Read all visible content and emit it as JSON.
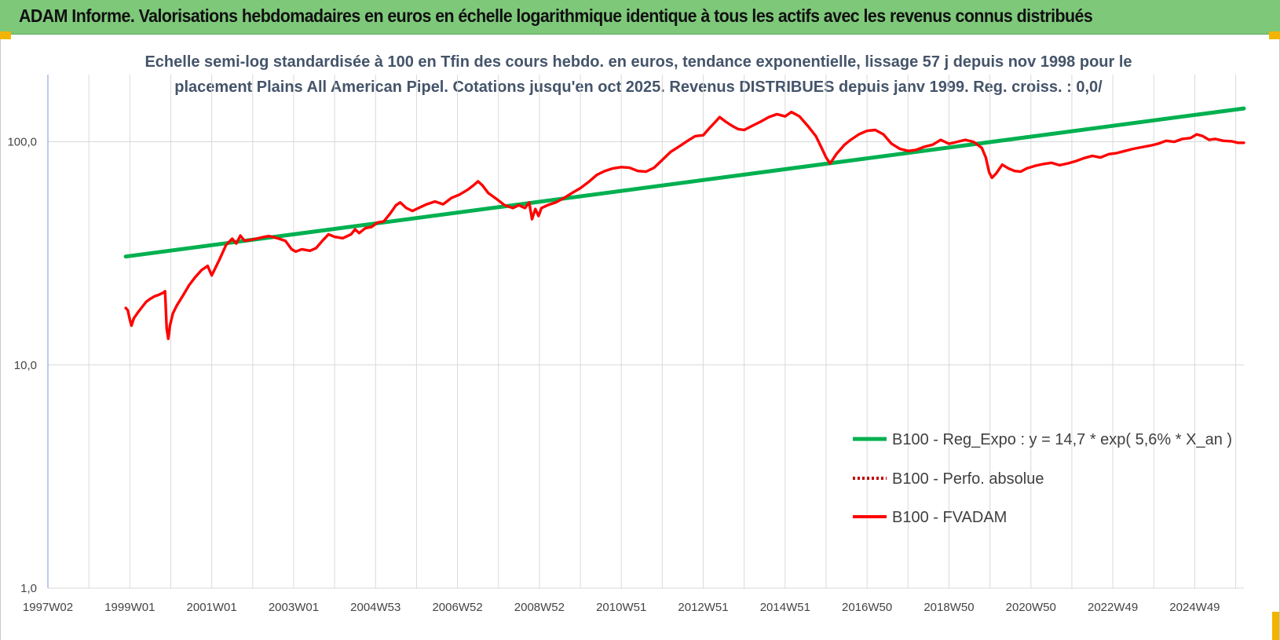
{
  "header": {
    "title": "ADAM Informe. Valorisations hebdomadaires en euros en échelle logarithmique identique à tous les actifs avec les revenus connus distribués"
  },
  "colors": {
    "header_bg": "#7ec87a",
    "trend": "#00b050",
    "fvadam": "#ff0000",
    "perfo": "#c00000",
    "grid": "#d9d9d9"
  },
  "chart_data": {
    "type": "line",
    "title_line1": "Echelle semi-log standardisée à 100 en Tfin des cours hebdo. en euros, tendance exponentielle, lissage 57 j depuis nov 1998 pour le",
    "title_line2": "placement Plains All American Pipel. Cotations jusqu'en oct 2025. Revenus DISTRIBUES depuis janv 1999. Reg. croiss. : 0,0/",
    "y_scale": "log",
    "ylim": [
      1,
      200
    ],
    "y_ticks": [
      {
        "value": 1,
        "label": "1,0"
      },
      {
        "value": 10,
        "label": "10,0"
      },
      {
        "value": 100,
        "label": "100,0"
      }
    ],
    "xlim": [
      1997.0,
      2026.2
    ],
    "x_ticks": [
      {
        "value": 1997.0,
        "label": "1997W02"
      },
      {
        "value": 1999.0,
        "label": "1999W01"
      },
      {
        "value": 2001.0,
        "label": "2001W01"
      },
      {
        "value": 2003.0,
        "label": "2003W01"
      },
      {
        "value": 2005.0,
        "label": "2004W53"
      },
      {
        "value": 2007.0,
        "label": "2006W52"
      },
      {
        "value": 2009.0,
        "label": "2008W52"
      },
      {
        "value": 2011.0,
        "label": "2010W51"
      },
      {
        "value": 2013.0,
        "label": "2012W51"
      },
      {
        "value": 2015.0,
        "label": "2014W51"
      },
      {
        "value": 2017.0,
        "label": "2016W50"
      },
      {
        "value": 2019.0,
        "label": "2018W50"
      },
      {
        "value": 2021.0,
        "label": "2020W50"
      },
      {
        "value": 2023.0,
        "label": "2022W49"
      },
      {
        "value": 2025.0,
        "label": "2024W49"
      }
    ],
    "legend_position": "bottom-right",
    "series": [
      {
        "name": "B100 - Reg_Expo : y = 14,7 * exp( 5,6% * X_an )",
        "style": "solid",
        "color": "#00b050",
        "points": [
          [
            1998.9,
            30.6
          ],
          [
            2026.2,
            141.0
          ]
        ]
      },
      {
        "name": "B100 - Perfo. absolue",
        "style": "dotted",
        "color": "#c00000",
        "points": []
      },
      {
        "name": "B100 - FVADAM",
        "style": "solid",
        "color": "#ff0000",
        "points": [
          [
            1998.9,
            18.0
          ],
          [
            1998.95,
            17.6
          ],
          [
            1999.0,
            16.0
          ],
          [
            1999.04,
            15.0
          ],
          [
            1999.1,
            16.2
          ],
          [
            1999.2,
            17.2
          ],
          [
            1999.3,
            18.2
          ],
          [
            1999.4,
            19.2
          ],
          [
            1999.5,
            19.8
          ],
          [
            1999.6,
            20.3
          ],
          [
            1999.7,
            20.6
          ],
          [
            1999.8,
            21.0
          ],
          [
            1999.86,
            21.4
          ],
          [
            1999.9,
            14.5
          ],
          [
            1999.94,
            13.1
          ],
          [
            1999.98,
            15.0
          ],
          [
            2000.05,
            17.0
          ],
          [
            2000.15,
            18.5
          ],
          [
            2000.3,
            20.5
          ],
          [
            2000.45,
            22.8
          ],
          [
            2000.6,
            24.8
          ],
          [
            2000.75,
            26.6
          ],
          [
            2000.9,
            27.8
          ],
          [
            2001.0,
            25.2
          ],
          [
            2001.08,
            27.0
          ],
          [
            2001.2,
            30.0
          ],
          [
            2001.35,
            34.5
          ],
          [
            2001.5,
            36.8
          ],
          [
            2001.6,
            35.0
          ],
          [
            2001.7,
            38.0
          ],
          [
            2001.8,
            36.0
          ],
          [
            2002.0,
            36.5
          ],
          [
            2002.2,
            37.2
          ],
          [
            2002.4,
            37.8
          ],
          [
            2002.6,
            37.0
          ],
          [
            2002.8,
            36.0
          ],
          [
            2002.95,
            33.0
          ],
          [
            2003.05,
            32.2
          ],
          [
            2003.2,
            33.0
          ],
          [
            2003.4,
            32.5
          ],
          [
            2003.55,
            33.4
          ],
          [
            2003.7,
            36.0
          ],
          [
            2003.85,
            38.5
          ],
          [
            2004.0,
            37.5
          ],
          [
            2004.2,
            37.0
          ],
          [
            2004.4,
            38.5
          ],
          [
            2004.5,
            40.5
          ],
          [
            2004.6,
            39.0
          ],
          [
            2004.75,
            41.0
          ],
          [
            2004.9,
            41.5
          ],
          [
            2005.05,
            43.5
          ],
          [
            2005.2,
            44.0
          ],
          [
            2005.35,
            47.5
          ],
          [
            2005.5,
            52.0
          ],
          [
            2005.6,
            53.5
          ],
          [
            2005.75,
            50.5
          ],
          [
            2005.9,
            49.0
          ],
          [
            2006.05,
            50.5
          ],
          [
            2006.25,
            52.5
          ],
          [
            2006.45,
            54.0
          ],
          [
            2006.65,
            52.5
          ],
          [
            2006.85,
            56.0
          ],
          [
            2007.05,
            58.0
          ],
          [
            2007.25,
            61.0
          ],
          [
            2007.4,
            64.0
          ],
          [
            2007.5,
            66.5
          ],
          [
            2007.6,
            64.0
          ],
          [
            2007.75,
            59.0
          ],
          [
            2007.95,
            55.5
          ],
          [
            2008.15,
            52.0
          ],
          [
            2008.35,
            50.5
          ],
          [
            2008.5,
            52.0
          ],
          [
            2008.65,
            50.5
          ],
          [
            2008.75,
            53.5
          ],
          [
            2008.82,
            45.0
          ],
          [
            2008.9,
            50.0
          ],
          [
            2008.98,
            46.5
          ],
          [
            2009.05,
            50.5
          ],
          [
            2009.2,
            52.0
          ],
          [
            2009.4,
            53.5
          ],
          [
            2009.6,
            56.0
          ],
          [
            2009.8,
            59.0
          ],
          [
            2010.0,
            62.0
          ],
          [
            2010.2,
            66.0
          ],
          [
            2010.4,
            71.0
          ],
          [
            2010.6,
            74.0
          ],
          [
            2010.8,
            76.0
          ],
          [
            2011.0,
            77.0
          ],
          [
            2011.2,
            76.5
          ],
          [
            2011.4,
            74.0
          ],
          [
            2011.6,
            73.5
          ],
          [
            2011.8,
            76.5
          ],
          [
            2012.0,
            83.0
          ],
          [
            2012.2,
            90.0
          ],
          [
            2012.4,
            95.0
          ],
          [
            2012.6,
            100.5
          ],
          [
            2012.8,
            106.0
          ],
          [
            2013.0,
            107.0
          ],
          [
            2013.15,
            115.0
          ],
          [
            2013.3,
            123.0
          ],
          [
            2013.4,
            129.0
          ],
          [
            2013.55,
            123.0
          ],
          [
            2013.7,
            118.0
          ],
          [
            2013.85,
            114.0
          ],
          [
            2014.0,
            113.0
          ],
          [
            2014.2,
            118.0
          ],
          [
            2014.4,
            123.0
          ],
          [
            2014.6,
            129.0
          ],
          [
            2014.8,
            133.0
          ],
          [
            2015.0,
            130.0
          ],
          [
            2015.15,
            136.0
          ],
          [
            2015.35,
            130.0
          ],
          [
            2015.55,
            118.0
          ],
          [
            2015.75,
            106.0
          ],
          [
            2015.9,
            93.0
          ],
          [
            2016.0,
            85.0
          ],
          [
            2016.1,
            80.0
          ],
          [
            2016.25,
            88.0
          ],
          [
            2016.45,
            97.0
          ],
          [
            2016.6,
            102.0
          ],
          [
            2016.8,
            108.0
          ],
          [
            2017.0,
            112.0
          ],
          [
            2017.2,
            113.0
          ],
          [
            2017.4,
            108.0
          ],
          [
            2017.6,
            98.0
          ],
          [
            2017.8,
            93.0
          ],
          [
            2018.0,
            91.0
          ],
          [
            2018.2,
            92.0
          ],
          [
            2018.4,
            95.0
          ],
          [
            2018.6,
            97.0
          ],
          [
            2018.8,
            102.0
          ],
          [
            2019.0,
            98.0
          ],
          [
            2019.2,
            100.0
          ],
          [
            2019.4,
            102.0
          ],
          [
            2019.6,
            100.0
          ],
          [
            2019.8,
            94.0
          ],
          [
            2019.9,
            85.0
          ],
          [
            2019.98,
            73.0
          ],
          [
            2020.05,
            69.0
          ],
          [
            2020.15,
            72.0
          ],
          [
            2020.3,
            79.0
          ],
          [
            2020.45,
            76.0
          ],
          [
            2020.6,
            74.0
          ],
          [
            2020.75,
            73.5
          ],
          [
            2020.9,
            76.0
          ],
          [
            2021.1,
            78.0
          ],
          [
            2021.3,
            79.5
          ],
          [
            2021.5,
            80.5
          ],
          [
            2021.7,
            78.5
          ],
          [
            2021.9,
            80.0
          ],
          [
            2022.1,
            82.0
          ],
          [
            2022.3,
            84.5
          ],
          [
            2022.5,
            86.5
          ],
          [
            2022.7,
            85.0
          ],
          [
            2022.9,
            88.0
          ],
          [
            2023.1,
            89.0
          ],
          [
            2023.3,
            91.0
          ],
          [
            2023.5,
            93.0
          ],
          [
            2023.7,
            94.5
          ],
          [
            2023.9,
            96.0
          ],
          [
            2024.1,
            98.0
          ],
          [
            2024.3,
            101.0
          ],
          [
            2024.5,
            100.0
          ],
          [
            2024.7,
            103.0
          ],
          [
            2024.9,
            104.0
          ],
          [
            2025.05,
            108.0
          ],
          [
            2025.2,
            106.0
          ],
          [
            2025.35,
            102.0
          ],
          [
            2025.5,
            103.0
          ],
          [
            2025.7,
            101.0
          ],
          [
            2025.9,
            100.5
          ],
          [
            2026.05,
            99.0
          ],
          [
            2026.2,
            99.0
          ]
        ]
      }
    ]
  }
}
